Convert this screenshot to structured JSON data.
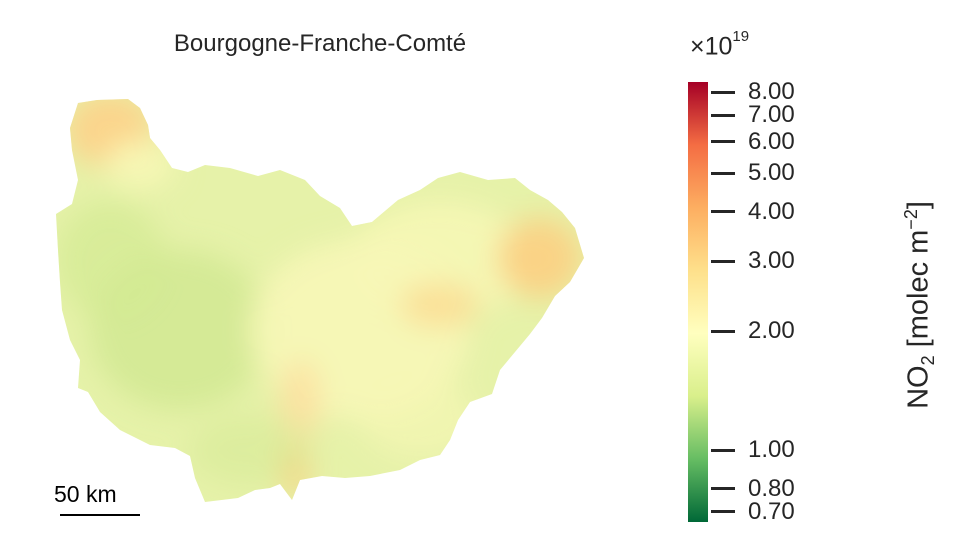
{
  "title": "Bourgogne-Franche-Comté",
  "scale_bar": {
    "label": "50 km"
  },
  "colorbar": {
    "exponent_prefix": "×10",
    "exponent": "19",
    "label_main": "NO",
    "label_sub": "2",
    "label_unit": " [molec m",
    "label_sup": "−2",
    "label_close": "]",
    "scale": "log",
    "colormap": "RdYlGn_r",
    "colors": [
      "#006837",
      "#66bd63",
      "#d9ef8b",
      "#ffffbf",
      "#fee08b",
      "#fdae61",
      "#f46d43",
      "#a50026"
    ],
    "ticks": [
      {
        "value": 8.0,
        "label": "8.00"
      },
      {
        "value": 7.0,
        "label": "7.00"
      },
      {
        "value": 6.0,
        "label": "6.00"
      },
      {
        "value": 5.0,
        "label": "5.00"
      },
      {
        "value": 4.0,
        "label": "4.00"
      },
      {
        "value": 3.0,
        "label": "3.00"
      },
      {
        "value": 2.0,
        "label": "2.00"
      },
      {
        "value": 1.0,
        "label": "1.00"
      },
      {
        "value": 0.8,
        "label": "0.80"
      },
      {
        "value": 0.7,
        "label": "0.70"
      }
    ],
    "range": [
      0.66,
      8.5
    ]
  },
  "map_colors": {
    "base": "#e6f2a9",
    "west_green": "#d3e993",
    "center_yellow": "#f7f7b6",
    "ne_orange": "#fcd38a",
    "east_orange": "#fbd184",
    "corridor": "#fce0a0"
  }
}
